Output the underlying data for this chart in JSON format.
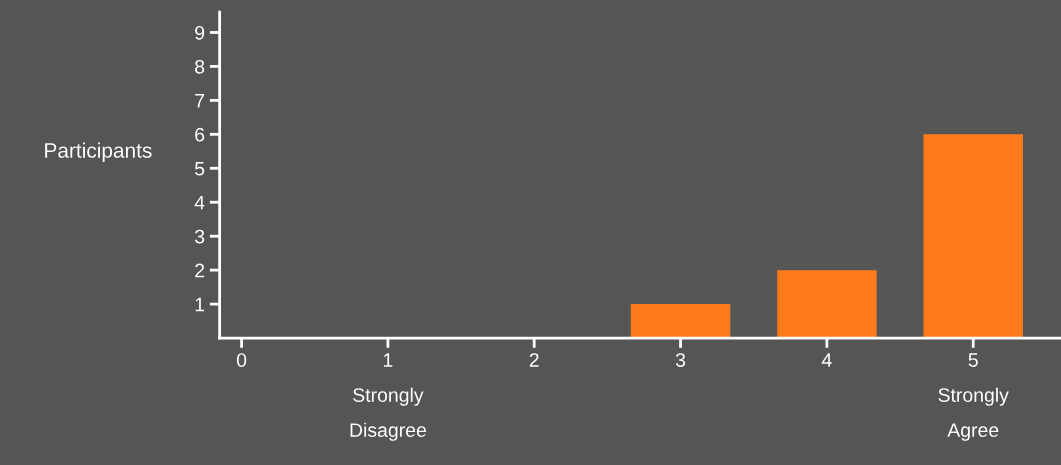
{
  "chart_data": {
    "type": "bar",
    "ylabel": "Participants",
    "x": [
      3,
      4,
      5
    ],
    "values": [
      1,
      2,
      6
    ],
    "color": "#ff7a1a",
    "xlim": [
      -0.15,
      5.6
    ],
    "xticks": [
      0,
      {
        "value": 1,
        "label": "1\nStrongly\nDisagree"
      },
      2,
      3,
      4,
      {
        "value": 5,
        "label": "5\nStrongly\nAgree"
      }
    ],
    "ylim": [
      0,
      9.6
    ],
    "yticks": [
      1,
      2,
      3,
      4,
      5,
      6,
      7,
      8,
      9
    ],
    "grid": false
  }
}
